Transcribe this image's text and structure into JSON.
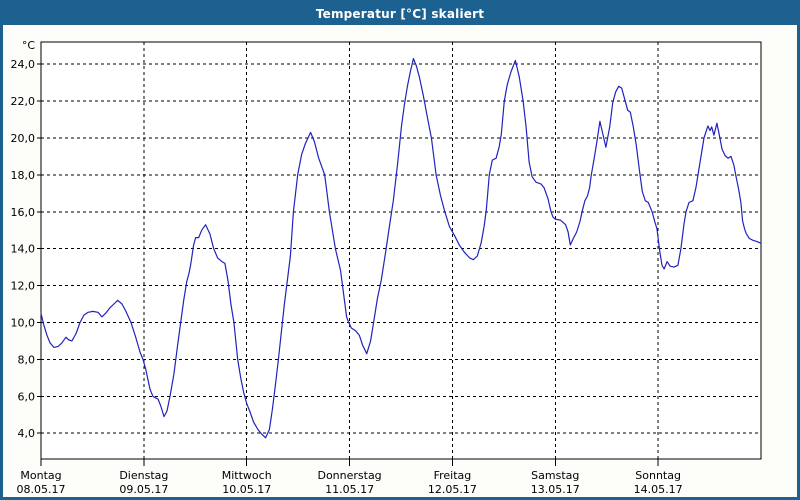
{
  "window": {
    "title": "Temperatur [°C] skaliert"
  },
  "colors": {
    "titlebar_bg": "#1d6191",
    "titlebar_text": "#ffffff",
    "window_border": "#1d6191",
    "window_bg": "#fdfdf9",
    "plot_bg": "#ffffff",
    "grid": "#000000",
    "axis_text": "#000000",
    "line": "#2222bd"
  },
  "chart_data": {
    "type": "line",
    "title": "Temperatur [°C] skaliert",
    "unit_label": "°C",
    "xlabel": "",
    "ylabel": "°C",
    "ylim": [
      2.6,
      25.2
    ],
    "xlim_hours": [
      0,
      168
    ],
    "grid": true,
    "legend_position": "none",
    "yticks": [
      {
        "value": 24,
        "label": "24,0"
      },
      {
        "value": 22,
        "label": "22,0"
      },
      {
        "value": 20,
        "label": "20,0"
      },
      {
        "value": 18,
        "label": "18,0"
      },
      {
        "value": 16,
        "label": "16,0"
      },
      {
        "value": 14,
        "label": "14,0"
      },
      {
        "value": 12,
        "label": "12,0"
      },
      {
        "value": 10,
        "label": "10,0"
      },
      {
        "value": 8,
        "label": "8,0"
      },
      {
        "value": 6,
        "label": "6,0"
      },
      {
        "value": 4,
        "label": "4,0"
      }
    ],
    "xticks": [
      {
        "hour": 0,
        "day": "Montag",
        "date": "08.05.17"
      },
      {
        "hour": 24,
        "day": "Dienstag",
        "date": "09.05.17"
      },
      {
        "hour": 48,
        "day": "Mittwoch",
        "date": "10.05.17"
      },
      {
        "hour": 72,
        "day": "Donnerstag",
        "date": "11.05.17"
      },
      {
        "hour": 96,
        "day": "Freitag",
        "date": "12.05.17"
      },
      {
        "hour": 120,
        "day": "Samstag",
        "date": "13.05.17"
      },
      {
        "hour": 144,
        "day": "Sonntag",
        "date": "14.05.17"
      }
    ],
    "series": [
      {
        "name": "Temperatur [°C]",
        "color": "#2222bd",
        "points": [
          [
            0,
            10.5
          ],
          [
            0.6,
            9.9
          ],
          [
            1.4,
            9.3
          ],
          [
            2.1,
            8.9
          ],
          [
            3,
            8.65
          ],
          [
            4,
            8.7
          ],
          [
            4.9,
            8.9
          ],
          [
            5.8,
            9.2
          ],
          [
            6.5,
            9.05
          ],
          [
            7.2,
            9
          ],
          [
            8.2,
            9.4
          ],
          [
            9.1,
            10
          ],
          [
            10,
            10.4
          ],
          [
            11,
            10.55
          ],
          [
            12.1,
            10.6
          ],
          [
            13.3,
            10.55
          ],
          [
            14.2,
            10.3
          ],
          [
            15.1,
            10.5
          ],
          [
            16.1,
            10.8
          ],
          [
            17,
            11
          ],
          [
            17.9,
            11.2
          ],
          [
            18.9,
            11
          ],
          [
            19.8,
            10.6
          ],
          [
            21,
            10
          ],
          [
            22.1,
            9.2
          ],
          [
            23.1,
            8.4
          ],
          [
            23.8,
            8
          ],
          [
            24.5,
            7.4
          ],
          [
            25.4,
            6.4
          ],
          [
            26.1,
            6
          ],
          [
            26.8,
            5.9
          ],
          [
            27.3,
            5.85
          ],
          [
            27.9,
            5.5
          ],
          [
            28.7,
            4.9
          ],
          [
            29.4,
            5.2
          ],
          [
            30.1,
            6
          ],
          [
            31,
            7.2
          ],
          [
            31.9,
            8.8
          ],
          [
            32.6,
            10
          ],
          [
            33.3,
            11.2
          ],
          [
            34,
            12.2
          ],
          [
            34.5,
            12.65
          ],
          [
            34.9,
            13.1
          ],
          [
            35.6,
            14.2
          ],
          [
            36.1,
            14.6
          ],
          [
            36.8,
            14.6
          ],
          [
            37.5,
            15
          ],
          [
            38.4,
            15.3
          ],
          [
            39.4,
            14.8
          ],
          [
            40.3,
            14
          ],
          [
            41.2,
            13.5
          ],
          [
            42.2,
            13.3
          ],
          [
            42.9,
            13.2
          ],
          [
            43.6,
            12.3
          ],
          [
            44.3,
            11
          ],
          [
            45,
            10
          ],
          [
            45.9,
            8
          ],
          [
            46.6,
            7
          ],
          [
            47.3,
            6.2
          ],
          [
            48,
            5.6
          ],
          [
            48.7,
            5.2
          ],
          [
            49.6,
            4.6
          ],
          [
            50.6,
            4.2
          ],
          [
            51.5,
            3.95
          ],
          [
            52.4,
            3.75
          ],
          [
            53.3,
            4.2
          ],
          [
            54,
            5.3
          ],
          [
            54.7,
            6.6
          ],
          [
            55.4,
            8
          ],
          [
            56.1,
            9.5
          ],
          [
            56.8,
            11
          ],
          [
            57.5,
            12.3
          ],
          [
            58.2,
            13.6
          ],
          [
            58.9,
            16
          ],
          [
            59.9,
            18
          ],
          [
            60.8,
            19.1
          ],
          [
            61.7,
            19.7
          ],
          [
            62.9,
            20.3
          ],
          [
            63.8,
            19.8
          ],
          [
            64.8,
            18.9
          ],
          [
            66.2,
            18
          ],
          [
            67.3,
            16
          ],
          [
            68.7,
            14
          ],
          [
            69.9,
            12.8
          ],
          [
            71.3,
            10.3
          ],
          [
            71.7,
            10.05
          ],
          [
            72.4,
            9.7
          ],
          [
            73.4,
            9.55
          ],
          [
            74.3,
            9.3
          ],
          [
            75,
            8.8
          ],
          [
            76,
            8.3
          ],
          [
            76.9,
            9
          ],
          [
            77.6,
            10
          ],
          [
            78.5,
            11.3
          ],
          [
            79.4,
            12.3
          ],
          [
            80.4,
            13.8
          ],
          [
            81.3,
            15.2
          ],
          [
            82.2,
            16.6
          ],
          [
            83.2,
            18.6
          ],
          [
            84.1,
            20.6
          ],
          [
            84.8,
            21.8
          ],
          [
            85.5,
            22.8
          ],
          [
            86.2,
            23.6
          ],
          [
            86.9,
            24.3
          ],
          [
            87.6,
            23.9
          ],
          [
            88.3,
            23.3
          ],
          [
            89.2,
            22.3
          ],
          [
            90.1,
            21.2
          ],
          [
            91.1,
            20
          ],
          [
            92.2,
            18
          ],
          [
            93.2,
            16.9
          ],
          [
            94.1,
            16.1
          ],
          [
            95.3,
            15.2
          ],
          [
            96.5,
            14.7
          ],
          [
            97.6,
            14.2
          ],
          [
            98.8,
            13.8
          ],
          [
            100,
            13.5
          ],
          [
            100.9,
            13.4
          ],
          [
            101.8,
            13.6
          ],
          [
            102.7,
            14.3
          ],
          [
            103.4,
            15.2
          ],
          [
            103.9,
            16.1
          ],
          [
            104.6,
            18
          ],
          [
            105.3,
            18.8
          ],
          [
            106.2,
            18.9
          ],
          [
            106.9,
            19.5
          ],
          [
            107.4,
            20.2
          ],
          [
            108.1,
            22
          ],
          [
            108.8,
            22.9
          ],
          [
            109.7,
            23.6
          ],
          [
            110.7,
            24.2
          ],
          [
            111.6,
            23.3
          ],
          [
            112.5,
            22
          ],
          [
            113.2,
            20.6
          ],
          [
            113.9,
            18.7
          ],
          [
            114.6,
            17.9
          ],
          [
            115.5,
            17.6
          ],
          [
            116.7,
            17.5
          ],
          [
            117.4,
            17.3
          ],
          [
            118.3,
            16.7
          ],
          [
            119,
            16
          ],
          [
            119.5,
            15.7
          ],
          [
            120,
            15.6
          ],
          [
            121.2,
            15.55
          ],
          [
            122.4,
            15.3
          ],
          [
            123,
            14.9
          ],
          [
            123.5,
            14.2
          ],
          [
            124.2,
            14.55
          ],
          [
            125,
            14.9
          ],
          [
            125.8,
            15.5
          ],
          [
            126.3,
            16.05
          ],
          [
            126.9,
            16.6
          ],
          [
            127.5,
            16.85
          ],
          [
            128,
            17.3
          ],
          [
            128.4,
            18
          ],
          [
            129,
            18.8
          ],
          [
            129.7,
            19.8
          ],
          [
            130.4,
            20.9
          ],
          [
            131.1,
            20.2
          ],
          [
            131.8,
            19.5
          ],
          [
            132.7,
            20.6
          ],
          [
            133.4,
            21.9
          ],
          [
            134.1,
            22.5
          ],
          [
            134.8,
            22.8
          ],
          [
            135.5,
            22.7
          ],
          [
            136.2,
            22.1
          ],
          [
            136.9,
            21.5
          ],
          [
            137.5,
            21.4
          ],
          [
            138.2,
            20.6
          ],
          [
            138.9,
            19.6
          ],
          [
            139.6,
            18.3
          ],
          [
            140.3,
            17.1
          ],
          [
            141,
            16.6
          ],
          [
            141.7,
            16.5
          ],
          [
            142.6,
            16
          ],
          [
            143.3,
            15.4
          ],
          [
            143.7,
            15.1
          ],
          [
            144.4,
            13.8
          ],
          [
            144.9,
            13.1
          ],
          [
            145.4,
            12.9
          ],
          [
            146.1,
            13.3
          ],
          [
            146.8,
            13.05
          ],
          [
            147.7,
            13
          ],
          [
            148.6,
            13.1
          ],
          [
            149.3,
            14
          ],
          [
            150,
            15.3
          ],
          [
            150.5,
            16
          ],
          [
            151.2,
            16.5
          ],
          [
            152.1,
            16.6
          ],
          [
            152.8,
            17.3
          ],
          [
            153.3,
            18
          ],
          [
            154,
            19
          ],
          [
            154.7,
            20
          ],
          [
            155.6,
            20.65
          ],
          [
            156.1,
            20.4
          ],
          [
            156.5,
            20.6
          ],
          [
            157,
            20.15
          ],
          [
            157.7,
            20.8
          ],
          [
            158.4,
            20
          ],
          [
            158.9,
            19.4
          ],
          [
            159.6,
            19.05
          ],
          [
            160.3,
            18.9
          ],
          [
            161,
            19
          ],
          [
            161.7,
            18.5
          ],
          [
            162.1,
            18
          ],
          [
            162.8,
            17.2
          ],
          [
            163.3,
            16.5
          ],
          [
            163.7,
            15.5
          ],
          [
            164.2,
            15.05
          ],
          [
            164.6,
            14.8
          ],
          [
            165.3,
            14.55
          ],
          [
            166.2,
            14.45
          ],
          [
            166.9,
            14.4
          ],
          [
            167.9,
            14.3
          ]
        ]
      }
    ]
  }
}
